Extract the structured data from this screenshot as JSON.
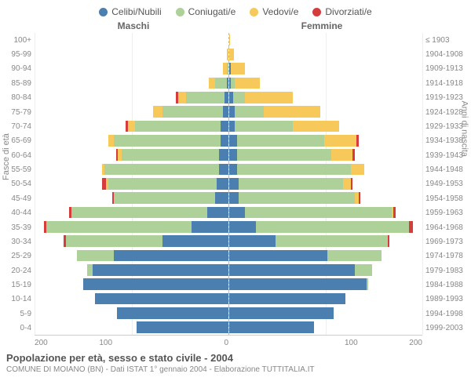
{
  "chart": {
    "type": "population-pyramid",
    "legend": [
      {
        "label": "Celibi/Nubili",
        "color": "#4a7fb0"
      },
      {
        "label": "Coniugati/e",
        "color": "#aed199"
      },
      {
        "label": "Vedovi/e",
        "color": "#f7c95a"
      },
      {
        "label": "Divorziati/e",
        "color": "#d73c3c"
      }
    ],
    "header_left": "Maschi",
    "header_right": "Femmine",
    "y_axis_left_title": "Fasce di età",
    "y_axis_right_title": "Anni di nascita",
    "age_groups": [
      "100+",
      "95-99",
      "90-94",
      "85-89",
      "80-84",
      "75-79",
      "70-74",
      "65-69",
      "60-64",
      "55-59",
      "50-54",
      "45-49",
      "40-44",
      "35-39",
      "30-34",
      "25-29",
      "20-24",
      "15-19",
      "10-14",
      "5-9",
      "0-4"
    ],
    "birth_years": [
      "≤ 1903",
      "1904-1908",
      "1909-1913",
      "1914-1918",
      "1919-1923",
      "1924-1928",
      "1929-1933",
      "1934-1938",
      "1939-1943",
      "1944-1948",
      "1949-1953",
      "1954-1958",
      "1959-1963",
      "1964-1968",
      "1969-1973",
      "1974-1978",
      "1979-1983",
      "1984-1988",
      "1989-1993",
      "1994-1998",
      "1999-2003"
    ],
    "xmax": 200,
    "xticks": [
      0,
      100,
      200
    ],
    "colors": {
      "celibi": "#4a7fb0",
      "coniugati": "#aed199",
      "vedovi": "#f7c95a",
      "divorziati": "#d73c3c",
      "grid": "#eeeeee",
      "text": "#888888",
      "background": "#ffffff"
    },
    "fontsize_labels": 10,
    "fontsize_legend": 12,
    "male": [
      {
        "celibi": 0,
        "coniugati": 0,
        "vedovi": 0,
        "divorziati": 0
      },
      {
        "celibi": 0,
        "coniugati": 0,
        "vedovi": 2,
        "divorziati": 0
      },
      {
        "celibi": 0,
        "coniugati": 2,
        "vedovi": 4,
        "divorziati": 0
      },
      {
        "celibi": 2,
        "coniugati": 12,
        "vedovi": 6,
        "divorziati": 0
      },
      {
        "celibi": 4,
        "coniugati": 40,
        "vedovi": 8,
        "divorziati": 2
      },
      {
        "celibi": 6,
        "coniugati": 62,
        "vedovi": 10,
        "divorziati": 0
      },
      {
        "celibi": 8,
        "coniugati": 88,
        "vedovi": 8,
        "divorziati": 2
      },
      {
        "celibi": 8,
        "coniugati": 110,
        "vedovi": 6,
        "divorziati": 0
      },
      {
        "celibi": 10,
        "coniugati": 100,
        "vedovi": 4,
        "divorziati": 2
      },
      {
        "celibi": 10,
        "coniugati": 118,
        "vedovi": 2,
        "divorziati": 0
      },
      {
        "celibi": 12,
        "coniugati": 112,
        "vedovi": 2,
        "divorziati": 4
      },
      {
        "celibi": 14,
        "coniugati": 104,
        "vedovi": 0,
        "divorziati": 2
      },
      {
        "celibi": 22,
        "coniugati": 140,
        "vedovi": 0,
        "divorziati": 2
      },
      {
        "celibi": 38,
        "coniugati": 150,
        "vedovi": 0,
        "divorziati": 2
      },
      {
        "celibi": 68,
        "coniugati": 100,
        "vedovi": 0,
        "divorziati": 2
      },
      {
        "celibi": 118,
        "coniugati": 38,
        "vedovi": 0,
        "divorziati": 0
      },
      {
        "celibi": 140,
        "coniugati": 6,
        "vedovi": 0,
        "divorziati": 0
      },
      {
        "celibi": 150,
        "coniugati": 0,
        "vedovi": 0,
        "divorziati": 0
      },
      {
        "celibi": 138,
        "coniugati": 0,
        "vedovi": 0,
        "divorziati": 0
      },
      {
        "celibi": 115,
        "coniugati": 0,
        "vedovi": 0,
        "divorziati": 0
      },
      {
        "celibi": 95,
        "coniugati": 0,
        "vedovi": 0,
        "divorziati": 0
      }
    ],
    "female": [
      {
        "celibi": 0,
        "coniugati": 0,
        "vedovi": 1,
        "divorziati": 0
      },
      {
        "celibi": 0,
        "coniugati": 0,
        "vedovi": 5,
        "divorziati": 0
      },
      {
        "celibi": 2,
        "coniugati": 0,
        "vedovi": 14,
        "divorziati": 0
      },
      {
        "celibi": 2,
        "coniugati": 4,
        "vedovi": 26,
        "divorziati": 0
      },
      {
        "celibi": 4,
        "coniugati": 12,
        "vedovi": 50,
        "divorziati": 0
      },
      {
        "celibi": 6,
        "coniugati": 30,
        "vedovi": 58,
        "divorziati": 0
      },
      {
        "celibi": 6,
        "coniugati": 60,
        "vedovi": 48,
        "divorziati": 0
      },
      {
        "celibi": 8,
        "coniugati": 90,
        "vedovi": 34,
        "divorziati": 2
      },
      {
        "celibi": 8,
        "coniugati": 98,
        "vedovi": 22,
        "divorziati": 2
      },
      {
        "celibi": 8,
        "coniugati": 118,
        "vedovi": 14,
        "divorziati": 0
      },
      {
        "celibi": 10,
        "coniugati": 108,
        "vedovi": 8,
        "divorziati": 2
      },
      {
        "celibi": 10,
        "coniugati": 120,
        "vedovi": 4,
        "divorziati": 2
      },
      {
        "celibi": 16,
        "coniugati": 152,
        "vedovi": 2,
        "divorziati": 2
      },
      {
        "celibi": 28,
        "coniugati": 158,
        "vedovi": 0,
        "divorziati": 4
      },
      {
        "celibi": 48,
        "coniugati": 116,
        "vedovi": 0,
        "divorziati": 2
      },
      {
        "celibi": 102,
        "coniugati": 56,
        "vedovi": 0,
        "divorziati": 0
      },
      {
        "celibi": 130,
        "coniugati": 18,
        "vedovi": 0,
        "divorziati": 0
      },
      {
        "celibi": 142,
        "coniugati": 2,
        "vedovi": 0,
        "divorziati": 0
      },
      {
        "celibi": 120,
        "coniugati": 0,
        "vedovi": 0,
        "divorziati": 0
      },
      {
        "celibi": 108,
        "coniugati": 0,
        "vedovi": 0,
        "divorziati": 0
      },
      {
        "celibi": 88,
        "coniugati": 0,
        "vedovi": 0,
        "divorziati": 0
      }
    ]
  },
  "title": "Popolazione per età, sesso e stato civile - 2004",
  "subtitle": "COMUNE DI MOIANO (BN) - Dati ISTAT 1° gennaio 2004 - Elaborazione TUTTITALIA.IT"
}
